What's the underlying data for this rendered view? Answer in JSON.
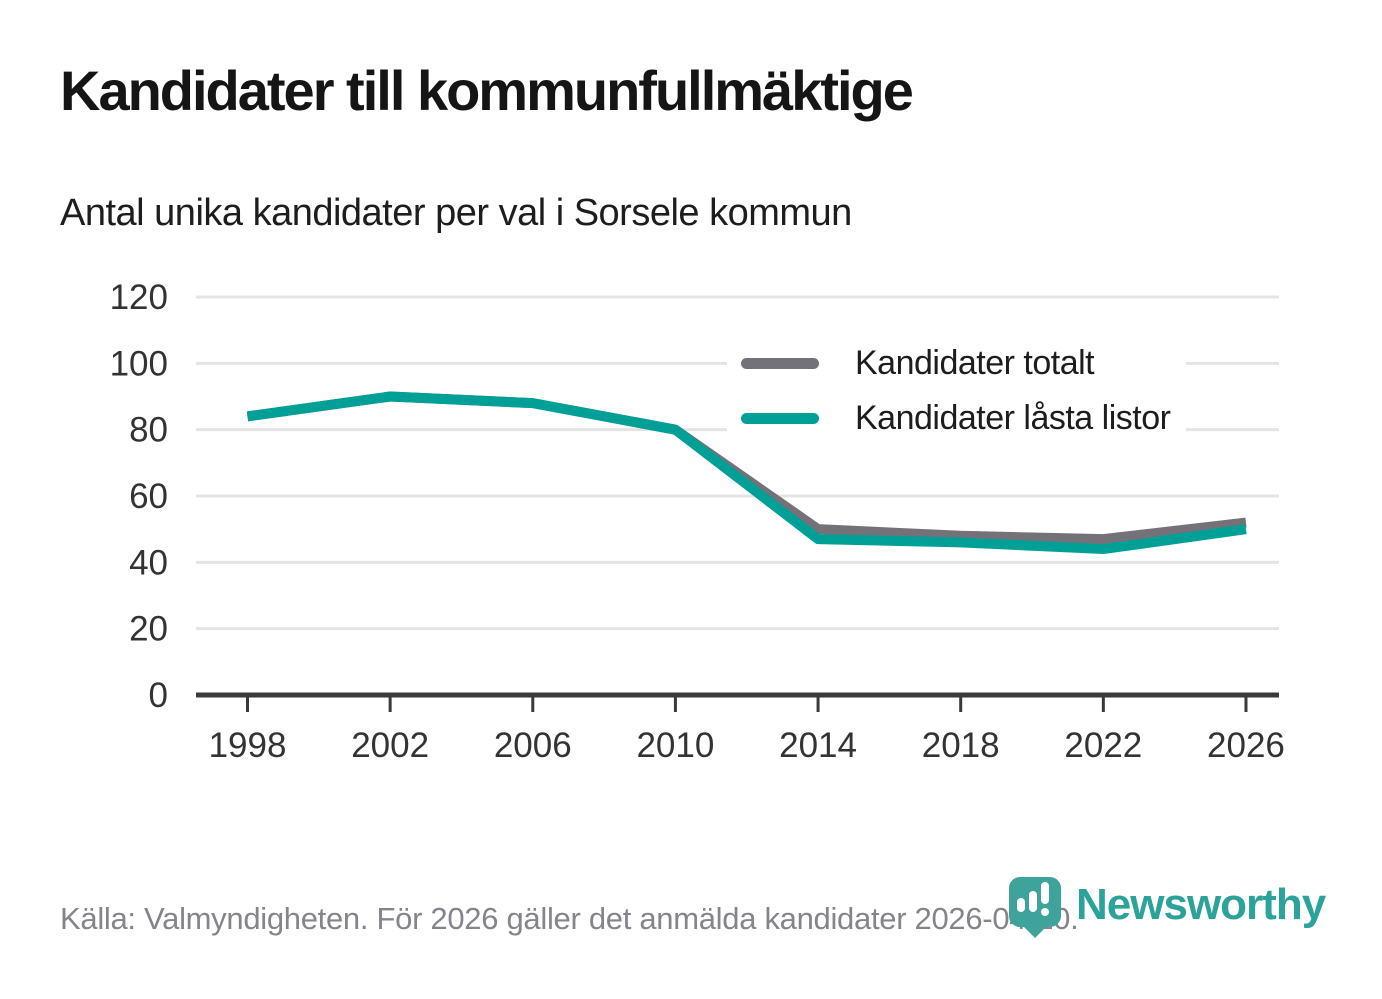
{
  "header": {
    "title": "Kandidater till kommunfullmäktige",
    "subtitle": "Antal unika kandidater per val i Sorsele kommun"
  },
  "chart_data": {
    "type": "line",
    "categories": [
      "1998",
      "2002",
      "2006",
      "2010",
      "2014",
      "2018",
      "2022",
      "2026"
    ],
    "series": [
      {
        "name": "Kandidater totalt",
        "color": "#757179",
        "values": [
          84,
          90,
          88,
          80,
          50,
          48,
          47,
          52
        ]
      },
      {
        "name": "Kandidater låsta listor",
        "color": "#00a096",
        "values": [
          84,
          90,
          88,
          80,
          47,
          46,
          44,
          50
        ]
      }
    ],
    "title": "Kandidater till kommunfullmäktige",
    "subtitle": "Antal unika kandidater per val i Sorsele kommun",
    "xlabel": "",
    "ylabel": "",
    "ylim": [
      0,
      120
    ],
    "yticks": [
      0,
      20,
      40,
      60,
      80,
      100,
      120
    ],
    "grid": "horizontal",
    "gridline_color": "#e4e4e4",
    "axis_color": "#3a3a3a",
    "legend_position": "top-right-inside"
  },
  "footer": {
    "source": "Källa: Valmyndigheten. För 2026 gäller det anmälda kandidater 2026-04-10."
  },
  "branding": {
    "logo_text": "Newsworthy",
    "logo_text_color": "#2ba39b",
    "logo_mark_color": "#3ea39b",
    "logo_mark_icon": "bar-chart-exclamation-pin-icon"
  }
}
